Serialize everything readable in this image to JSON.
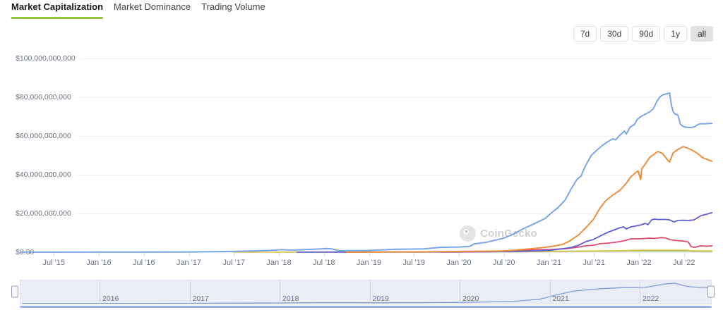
{
  "tabs": [
    {
      "label": "Market Capitalization",
      "active": true
    },
    {
      "label": "Market Dominance",
      "active": false
    },
    {
      "label": "Trading Volume",
      "active": false
    }
  ],
  "range_buttons": [
    {
      "label": "7d",
      "active": false
    },
    {
      "label": "30d",
      "active": false
    },
    {
      "label": "90d",
      "active": false
    },
    {
      "label": "1y",
      "active": false
    },
    {
      "label": "all",
      "active": true
    }
  ],
  "watermark": {
    "text": "CoinGecko"
  },
  "chart_data": {
    "type": "line",
    "title": "Market Capitalization",
    "xlabel": "",
    "ylabel": "",
    "grid": true,
    "legend": "none",
    "units": "USD, values in billions",
    "ylim_billions": [
      0,
      100
    ],
    "x_domain_years": [
      2015.14,
      2022.81
    ],
    "y_ticks": [
      {
        "v": 0,
        "label": "$0.00"
      },
      {
        "v": 20,
        "label": "$20,000,000,000"
      },
      {
        "v": 40,
        "label": "$40,000,000,000"
      },
      {
        "v": 60,
        "label": "$60,000,000,000"
      },
      {
        "v": 80,
        "label": "$80,000,000,000"
      },
      {
        "v": 100,
        "label": "$100,000,000,000"
      }
    ],
    "x_ticks": [
      {
        "t": 2015.5,
        "label": "Jul '15"
      },
      {
        "t": 2016.0,
        "label": "Jan '16"
      },
      {
        "t": 2016.5,
        "label": "Jul '16"
      },
      {
        "t": 2017.0,
        "label": "Jan '17"
      },
      {
        "t": 2017.5,
        "label": "Jul '17"
      },
      {
        "t": 2018.0,
        "label": "Jan '18"
      },
      {
        "t": 2018.5,
        "label": "Jul '18"
      },
      {
        "t": 2019.0,
        "label": "Jan '19"
      },
      {
        "t": 2019.5,
        "label": "Jul '19"
      },
      {
        "t": 2020.0,
        "label": "Jan '20"
      },
      {
        "t": 2020.5,
        "label": "Jul '20"
      },
      {
        "t": 2021.0,
        "label": "Jan '21"
      },
      {
        "t": 2021.5,
        "label": "Jul '21"
      },
      {
        "t": 2022.0,
        "label": "Jan '22"
      },
      {
        "t": 2022.5,
        "label": "Jul '22"
      }
    ],
    "series": [
      {
        "name": "gray",
        "color": "#c9ccd4",
        "width": 1.6,
        "points": [
          [
            2019.5,
            0.05
          ],
          [
            2020.5,
            0.15
          ],
          [
            2021.0,
            0.25
          ],
          [
            2021.5,
            0.35
          ],
          [
            2021.9,
            0.45
          ],
          [
            2022.3,
            0.45
          ],
          [
            2022.55,
            0.4
          ],
          [
            2022.6,
            0.25
          ],
          [
            2022.81,
            0.25
          ]
        ]
      },
      {
        "name": "green",
        "color": "#abd450",
        "width": 1.8,
        "points": [
          [
            2017.9,
            0.02
          ],
          [
            2019.0,
            0.08
          ],
          [
            2020.0,
            0.15
          ],
          [
            2020.7,
            0.3
          ],
          [
            2021.0,
            0.45
          ],
          [
            2021.3,
            0.6
          ],
          [
            2021.6,
            0.7
          ],
          [
            2021.9,
            0.8
          ],
          [
            2022.2,
            0.8
          ],
          [
            2022.5,
            0.75
          ],
          [
            2022.81,
            0.7
          ]
        ]
      },
      {
        "name": "yellow",
        "color": "#d6c250",
        "width": 1.6,
        "points": [
          [
            2017.5,
            0.05
          ],
          [
            2018.5,
            0.15
          ],
          [
            2019.0,
            0.2
          ],
          [
            2020.0,
            0.25
          ],
          [
            2021.0,
            0.35
          ],
          [
            2021.49,
            0.5
          ],
          [
            2021.7,
            0.6
          ],
          [
            2021.85,
            0.75
          ],
          [
            2021.91,
            1.0
          ],
          [
            2022.0,
            1.05
          ],
          [
            2022.2,
            1.1
          ],
          [
            2022.45,
            1.1
          ],
          [
            2022.55,
            1.05
          ],
          [
            2022.6,
            0.55
          ],
          [
            2022.7,
            0.5
          ],
          [
            2022.81,
            0.5
          ]
        ]
      },
      {
        "name": "red",
        "color": "#df4a6e",
        "width": 1.8,
        "points": [
          [
            2019.8,
            0.05
          ],
          [
            2020.2,
            0.2
          ],
          [
            2020.5,
            0.4
          ],
          [
            2020.71,
            1.0
          ],
          [
            2021.02,
            1.4
          ],
          [
            2021.2,
            1.9
          ],
          [
            2021.33,
            2.7
          ],
          [
            2021.41,
            3.3
          ],
          [
            2021.49,
            3.6
          ],
          [
            2021.57,
            4.4
          ],
          [
            2021.65,
            4.7
          ],
          [
            2021.73,
            5.1
          ],
          [
            2021.79,
            5.5
          ],
          [
            2021.86,
            6.2
          ],
          [
            2021.91,
            6.9
          ],
          [
            2021.99,
            6.9
          ],
          [
            2022.07,
            7.1
          ],
          [
            2022.12,
            7.3
          ],
          [
            2022.17,
            7.1
          ],
          [
            2022.21,
            7.3
          ],
          [
            2022.25,
            7.6
          ],
          [
            2022.3,
            7.3
          ],
          [
            2022.34,
            6.5
          ],
          [
            2022.39,
            6.2
          ],
          [
            2022.43,
            6.0
          ],
          [
            2022.49,
            5.8
          ],
          [
            2022.53,
            5.5
          ],
          [
            2022.55,
            5.1
          ],
          [
            2022.58,
            2.9
          ],
          [
            2022.62,
            2.5
          ],
          [
            2022.65,
            2.9
          ],
          [
            2022.69,
            3.3
          ],
          [
            2022.75,
            3.1
          ],
          [
            2022.81,
            3.3
          ]
        ]
      },
      {
        "name": "indigo",
        "color": "#5f5cd1",
        "width": 1.8,
        "points": [
          [
            2018.2,
            0.05
          ],
          [
            2019.0,
            0.1
          ],
          [
            2019.5,
            0.1
          ],
          [
            2020.0,
            0.2
          ],
          [
            2020.4,
            0.3
          ],
          [
            2020.7,
            0.5
          ],
          [
            2021.0,
            1.0
          ],
          [
            2021.15,
            1.8
          ],
          [
            2021.25,
            2.5
          ],
          [
            2021.33,
            3.6
          ],
          [
            2021.41,
            5.5
          ],
          [
            2021.49,
            6.5
          ],
          [
            2021.57,
            8.4
          ],
          [
            2021.65,
            10.2
          ],
          [
            2021.73,
            11.6
          ],
          [
            2021.79,
            12.7
          ],
          [
            2021.83,
            13.1
          ],
          [
            2021.86,
            12.0
          ],
          [
            2021.91,
            13.1
          ],
          [
            2021.99,
            13.8
          ],
          [
            2022.03,
            14.2
          ],
          [
            2022.07,
            14.9
          ],
          [
            2022.1,
            14.2
          ],
          [
            2022.14,
            16.7
          ],
          [
            2022.17,
            17.1
          ],
          [
            2022.21,
            16.9
          ],
          [
            2022.3,
            16.9
          ],
          [
            2022.34,
            16.7
          ],
          [
            2022.39,
            15.6
          ],
          [
            2022.43,
            16.4
          ],
          [
            2022.49,
            16.5
          ],
          [
            2022.55,
            16.4
          ],
          [
            2022.61,
            16.7
          ],
          [
            2022.69,
            18.9
          ],
          [
            2022.75,
            19.6
          ],
          [
            2022.81,
            20.4
          ]
        ]
      },
      {
        "name": "orange",
        "color": "#ec8f3f",
        "width": 2,
        "points": [
          [
            2018.75,
            0.05
          ],
          [
            2019.3,
            0.15
          ],
          [
            2019.8,
            0.3
          ],
          [
            2020.2,
            0.5
          ],
          [
            2020.47,
            0.6
          ],
          [
            2020.6,
            1.0
          ],
          [
            2020.75,
            1.6
          ],
          [
            2020.9,
            2.2
          ],
          [
            2021.02,
            2.9
          ],
          [
            2021.15,
            4.0
          ],
          [
            2021.23,
            5.8
          ],
          [
            2021.33,
            9.0
          ],
          [
            2021.41,
            12.7
          ],
          [
            2021.49,
            16.7
          ],
          [
            2021.57,
            23.0
          ],
          [
            2021.63,
            26.5
          ],
          [
            2021.71,
            29.5
          ],
          [
            2021.79,
            32.0
          ],
          [
            2021.86,
            35.6
          ],
          [
            2021.91,
            39.0
          ],
          [
            2021.99,
            42.0
          ],
          [
            2022.02,
            37.5
          ],
          [
            2022.03,
            43.0
          ],
          [
            2022.07,
            45.5
          ],
          [
            2022.12,
            49.0
          ],
          [
            2022.21,
            52.0
          ],
          [
            2022.26,
            51.0
          ],
          [
            2022.34,
            46.5
          ],
          [
            2022.38,
            51.3
          ],
          [
            2022.43,
            53.0
          ],
          [
            2022.49,
            54.5
          ],
          [
            2022.54,
            53.8
          ],
          [
            2022.59,
            52.7
          ],
          [
            2022.65,
            51.0
          ],
          [
            2022.7,
            49.0
          ],
          [
            2022.75,
            48.0
          ],
          [
            2022.81,
            47.0
          ]
        ]
      },
      {
        "name": "blue",
        "color": "#7aa6e9",
        "width": 2,
        "points": [
          [
            2015.14,
            0.05
          ],
          [
            2016.0,
            0.06
          ],
          [
            2016.5,
            0.07
          ],
          [
            2017.0,
            0.15
          ],
          [
            2017.5,
            0.4
          ],
          [
            2017.88,
            0.9
          ],
          [
            2018.04,
            1.3
          ],
          [
            2018.12,
            1.1
          ],
          [
            2018.27,
            1.3
          ],
          [
            2018.47,
            1.7
          ],
          [
            2018.53,
            1.9
          ],
          [
            2018.59,
            1.7
          ],
          [
            2018.67,
            0.75
          ],
          [
            2018.98,
            0.9
          ],
          [
            2019.29,
            1.5
          ],
          [
            2019.61,
            1.7
          ],
          [
            2019.79,
            2.5
          ],
          [
            2020.0,
            2.7
          ],
          [
            2020.12,
            3.0
          ],
          [
            2020.17,
            4.3
          ],
          [
            2020.31,
            5.2
          ],
          [
            2020.43,
            6.5
          ],
          [
            2020.49,
            7.2
          ],
          [
            2020.59,
            9.0
          ],
          [
            2020.65,
            10.5
          ],
          [
            2020.71,
            12.0
          ],
          [
            2020.86,
            15.2
          ],
          [
            2020.96,
            17.5
          ],
          [
            2021.02,
            20.0
          ],
          [
            2021.1,
            23.0
          ],
          [
            2021.18,
            27.0
          ],
          [
            2021.25,
            33.0
          ],
          [
            2021.31,
            37.5
          ],
          [
            2021.36,
            39.5
          ],
          [
            2021.37,
            41.0
          ],
          [
            2021.41,
            45.0
          ],
          [
            2021.47,
            50.0
          ],
          [
            2021.54,
            53.0
          ],
          [
            2021.59,
            55.0
          ],
          [
            2021.65,
            57.0
          ],
          [
            2021.71,
            58.5
          ],
          [
            2021.74,
            58.0
          ],
          [
            2021.79,
            60.5
          ],
          [
            2021.84,
            62.5
          ],
          [
            2021.86,
            61.0
          ],
          [
            2021.9,
            64.5
          ],
          [
            2021.95,
            66.0
          ],
          [
            2021.98,
            68.5
          ],
          [
            2022.02,
            70.0
          ],
          [
            2022.08,
            71.5
          ],
          [
            2022.12,
            72.5
          ],
          [
            2022.16,
            74.0
          ],
          [
            2022.2,
            78.0
          ],
          [
            2022.24,
            80.5
          ],
          [
            2022.27,
            81.3
          ],
          [
            2022.31,
            81.8
          ],
          [
            2022.34,
            82.2
          ],
          [
            2022.36,
            76.0
          ],
          [
            2022.38,
            72.5
          ],
          [
            2022.4,
            71.3
          ],
          [
            2022.43,
            71.0
          ],
          [
            2022.45,
            68.0
          ],
          [
            2022.46,
            66.0
          ],
          [
            2022.49,
            65.0
          ],
          [
            2022.51,
            64.6
          ],
          [
            2022.55,
            64.4
          ],
          [
            2022.59,
            64.4
          ],
          [
            2022.62,
            64.8
          ],
          [
            2022.65,
            65.8
          ],
          [
            2022.68,
            66.3
          ],
          [
            2022.72,
            66.3
          ],
          [
            2022.76,
            66.4
          ],
          [
            2022.81,
            66.5
          ]
        ]
      }
    ]
  },
  "navigator": {
    "year_ticks": [
      {
        "t": 2016.0,
        "label": "2016"
      },
      {
        "t": 2017.0,
        "label": "2017"
      },
      {
        "t": 2018.0,
        "label": "2018"
      },
      {
        "t": 2019.0,
        "label": "2019"
      },
      {
        "t": 2020.0,
        "label": "2020"
      },
      {
        "t": 2021.0,
        "label": "2021"
      },
      {
        "t": 2022.0,
        "label": "2022"
      }
    ],
    "line_color": "#7e9bd3",
    "total_series_billions": [
      [
        2015.14,
        2
      ],
      [
        2017.0,
        3
      ],
      [
        2018.0,
        6
      ],
      [
        2018.6,
        8
      ],
      [
        2019.0,
        7
      ],
      [
        2019.5,
        8
      ],
      [
        2020.0,
        10
      ],
      [
        2020.3,
        14
      ],
      [
        2020.6,
        20
      ],
      [
        2020.88,
        35
      ],
      [
        2021.06,
        70
      ],
      [
        2021.27,
        105
      ],
      [
        2021.53,
        123
      ],
      [
        2021.8,
        133
      ],
      [
        2022.06,
        135
      ],
      [
        2022.29,
        164
      ],
      [
        2022.39,
        170
      ],
      [
        2022.5,
        148
      ],
      [
        2022.55,
        141
      ],
      [
        2022.68,
        135
      ],
      [
        2022.78,
        135
      ]
    ]
  }
}
